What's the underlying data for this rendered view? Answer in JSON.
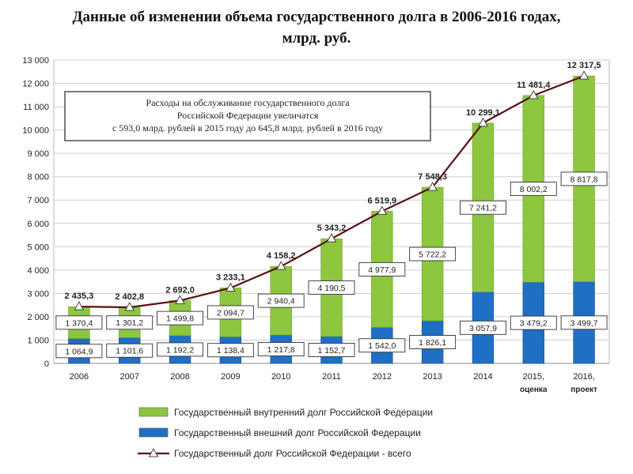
{
  "title": {
    "line1": "Данные об изменении объема государственного долга в 2006-2016 годах,",
    "line2": "млрд. руб."
  },
  "chart_data": {
    "type": "bar",
    "stacked": true,
    "categories": [
      "2006",
      "2007",
      "2008",
      "2009",
      "2010",
      "2011",
      "2012",
      "2013",
      "2014",
      "2015,",
      "2016,"
    ],
    "category_sublabels": [
      "",
      "",
      "",
      "",
      "",
      "",
      "",
      "",
      "",
      "оценка",
      "проект"
    ],
    "ylim": [
      0,
      13000
    ],
    "yticks": [
      0,
      1000,
      2000,
      3000,
      4000,
      5000,
      6000,
      7000,
      8000,
      9000,
      10000,
      11000,
      12000,
      13000
    ],
    "ytick_labels": [
      "0",
      "1 000",
      "2 000",
      "3 000",
      "4 000",
      "5 000",
      "6 000",
      "7 000",
      "8 000",
      "9 000",
      "10 000",
      "11 000",
      "12 000",
      "13 000"
    ],
    "grid": true,
    "series": [
      {
        "name": "Государственный внешний долг Российской Федерации",
        "color": "#1f6fc5",
        "values": [
          1064.9,
          1101.6,
          1192.2,
          1138.4,
          1217.8,
          1152.7,
          1542.0,
          1826.1,
          3057.9,
          3479.2,
          3499.7
        ],
        "labels": [
          "1 064,9",
          "1 101,6",
          "1 192,2",
          "1 138,4",
          "1 217,8",
          "1 152,7",
          "1 542,0",
          "1 826,1",
          "3 057,9",
          "3 479,2",
          "3 499,7"
        ]
      },
      {
        "name": "Государственный внутренний долг Российской Федерации",
        "color": "#8dc63f",
        "values": [
          1370.4,
          1301.2,
          1499.8,
          2094.7,
          2940.4,
          4190.5,
          4977.9,
          5722.2,
          7241.2,
          8002.2,
          8817.8
        ],
        "labels": [
          "1 370,4",
          "1 301,2",
          "1 499,8",
          "2 094,7",
          "2 940,4",
          "4 190,5",
          "4 977,9",
          "5 722,2",
          "7 241,2",
          "8 002,2",
          "8 817,8"
        ]
      },
      {
        "name": "Государственный  долг Российской Федерации - всего",
        "type": "line",
        "color": "#5a1010",
        "values": [
          2435.3,
          2402.8,
          2692.0,
          3233.1,
          4158.2,
          5343.2,
          6519.9,
          7548.3,
          10299.1,
          11481.4,
          12317.5
        ],
        "labels": [
          "2 435,3",
          "2 402,8",
          "2 692,0",
          "3 233,1",
          "4 158,2",
          "5 343,2",
          "6 519,9",
          "7 548,3",
          "10 299,1",
          "11 481,4",
          "12 317,5"
        ]
      }
    ],
    "annotation": [
      "Расходы на обслуживание государственного долга",
      "Российской Федерации увеличатся",
      "с 593,0 млрд. рублей в 2015 году до 645,8 млрд. рублей в 2016 году"
    ],
    "legend_position": "bottom"
  }
}
